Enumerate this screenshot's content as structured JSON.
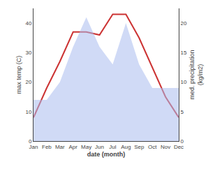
{
  "chart_data": {
    "type": "line",
    "categories": [
      "Jan",
      "Feb",
      "Mar",
      "Apr",
      "May",
      "Jun",
      "Jul",
      "Aug",
      "Sep",
      "Oct",
      "Nov",
      "Dec"
    ],
    "series": [
      {
        "type": "line",
        "color": "#cc3333",
        "values": [
          8,
          18,
          27,
          37,
          37,
          36,
          43,
          43,
          35,
          25,
          15,
          8
        ]
      },
      {
        "type": "area",
        "color": "#aabbee",
        "axis": "y2",
        "values": [
          7,
          7,
          10,
          16,
          21,
          16,
          13,
          20,
          13,
          9,
          9,
          9
        ]
      }
    ],
    "xlabel": "date (month)",
    "ylabel": "max temp (C)",
    "y2label": "med. precipitation\n(kg/m2)",
    "ylim": [
      0,
      45
    ],
    "yticks": [
      0,
      10,
      20,
      30,
      40
    ],
    "y2lim": [
      0,
      22.5
    ],
    "y2ticks": [
      0,
      5,
      10,
      15,
      20
    ],
    "grid": false
  }
}
